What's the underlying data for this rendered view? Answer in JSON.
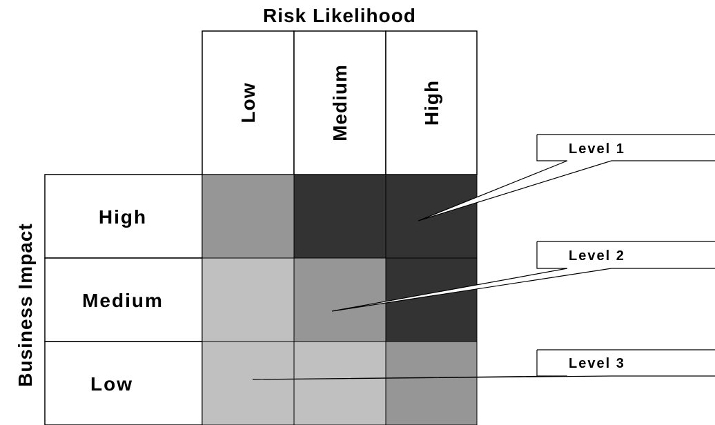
{
  "title": "Risk Likelihood",
  "y_axis_label": "Business Impact",
  "columns": [
    "Low",
    "Medium",
    "High"
  ],
  "rows": [
    "High",
    "Medium",
    "Low"
  ],
  "levels": [
    {
      "label": "Level 1",
      "color": "#333333"
    },
    {
      "label": "Level 2",
      "color": "#969696"
    },
    {
      "label": "Level 3",
      "color": "#c0c0c0"
    }
  ],
  "matrix_levels": [
    [
      2,
      1,
      1
    ],
    [
      3,
      2,
      1
    ],
    [
      3,
      3,
      2
    ]
  ]
}
